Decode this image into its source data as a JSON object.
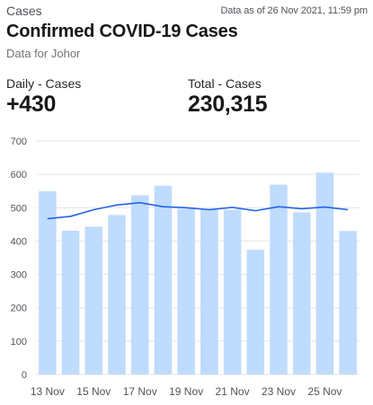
{
  "header": {
    "eyebrow": "Cases",
    "as_of": "Data as of 26 Nov 2021, 11:59 pm",
    "title": "Confirmed COVID-19 Cases",
    "subtitle": "Data for Johor"
  },
  "stats": {
    "daily_label": "Daily - Cases",
    "daily_value": "+430",
    "total_label": "Total - Cases",
    "total_value": "230,315"
  },
  "colors": {
    "bar": "#bfdbfe",
    "line": "#2563eb",
    "grid": "#e4e4e7"
  },
  "chart_data": {
    "type": "bar",
    "title": "",
    "xlabel": "",
    "ylabel": "",
    "ylim": [
      0,
      700
    ],
    "yticks": [
      0,
      100,
      200,
      300,
      400,
      500,
      600,
      700
    ],
    "grid": true,
    "categories": [
      "13 Nov",
      "14 Nov",
      "15 Nov",
      "16 Nov",
      "17 Nov",
      "18 Nov",
      "19 Nov",
      "20 Nov",
      "21 Nov",
      "22 Nov",
      "23 Nov",
      "24 Nov",
      "25 Nov",
      "26 Nov"
    ],
    "x_tick_labels": [
      "13 Nov",
      "",
      "15 Nov",
      "",
      "17 Nov",
      "",
      "19 Nov",
      "",
      "21 Nov",
      "",
      "23 Nov",
      "",
      "25 Nov",
      ""
    ],
    "series": [
      {
        "type": "bar",
        "values": [
          549,
          431,
          443,
          478,
          537,
          566,
          497,
          497,
          494,
          374,
          569,
          486,
          605,
          430
        ]
      },
      {
        "type": "line",
        "values": [
          467,
          474,
          494,
          508,
          515,
          503,
          500,
          494,
          501,
          491,
          503,
          497,
          502,
          494
        ]
      }
    ]
  }
}
